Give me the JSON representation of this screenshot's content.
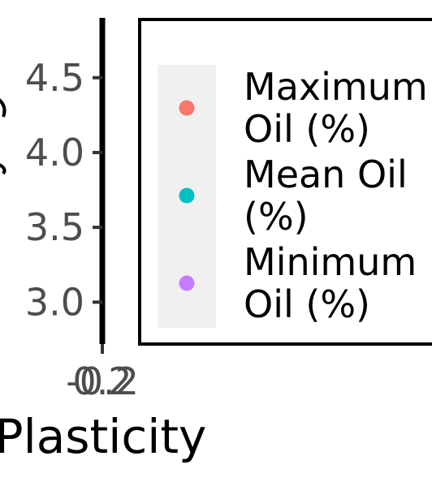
{
  "chart_data": {
    "type": "scatter",
    "xlabel": "Plasticity",
    "ylabel": "",
    "ylim": [
      2.72,
      4.9
    ],
    "y_ticks": [
      3.0,
      3.5,
      4.0,
      4.5
    ],
    "y_tick_labels": [
      "3.0",
      "3.5",
      "4.0",
      "4.5"
    ],
    "x_tick_labels": [
      "-0.2",
      "0.2"
    ],
    "legend_position": "right",
    "series": [
      {
        "name": "Maximum Oil (%)",
        "color": "#F8766D",
        "values": []
      },
      {
        "name": "Mean Oil (%)",
        "color": "#00BFC4",
        "values": []
      },
      {
        "name": "Minimum Oil (%)",
        "color": "#C77CFF",
        "values": []
      }
    ],
    "legend": {
      "entries": [
        {
          "lines": [
            "Maximum",
            "Oil (%)"
          ],
          "color": "#F8766D"
        },
        {
          "lines": [
            "Mean Oil",
            "(%)"
          ],
          "color": "#00BFC4"
        },
        {
          "lines": [
            "Minimum",
            "Oil (%)"
          ],
          "color": "#C77CFF"
        }
      ]
    }
  }
}
